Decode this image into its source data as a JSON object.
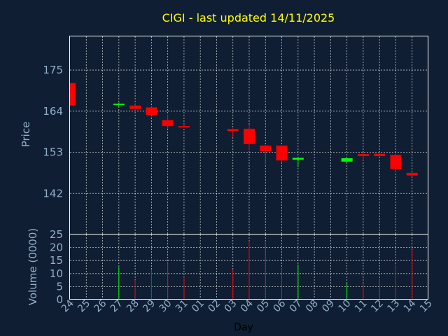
{
  "chart_data": {
    "type": "candlestick",
    "title": "CIGI - last updated 14/11/2025",
    "xlabel": "Day",
    "price_ylabel": "Price",
    "volume_ylabel": "Volume (0000)",
    "x_ticks": [
      "24",
      "25",
      "26",
      "27",
      "28",
      "29",
      "30",
      "31",
      "01",
      "02",
      "03",
      "04",
      "05",
      "06",
      "07",
      "08",
      "09",
      "10",
      "11",
      "12",
      "13",
      "14",
      "15"
    ],
    "price_ylim": [
      131,
      184
    ],
    "price_yticks": [
      142,
      153,
      164,
      175
    ],
    "volume_ylim": [
      0,
      25
    ],
    "volume_yticks": [
      0,
      5,
      10,
      15,
      20,
      25
    ],
    "colors": {
      "up": "#00ff00",
      "down": "#ff0000"
    },
    "candles": [
      {
        "day": "24",
        "open": 171.5,
        "high": 171.5,
        "low": 165.5,
        "close": 165.5,
        "volume": 0
      },
      {
        "day": "27",
        "open": 165.7,
        "high": 166.3,
        "low": 165.2,
        "close": 166.0,
        "volume": 12.5
      },
      {
        "day": "28",
        "open": 165.5,
        "high": 165.8,
        "low": 164.2,
        "close": 164.6,
        "volume": 7.5
      },
      {
        "day": "29",
        "open": 165.0,
        "high": 165.2,
        "low": 162.5,
        "close": 163.0,
        "volume": 11.5
      },
      {
        "day": "30",
        "open": 161.6,
        "high": 163.0,
        "low": 159.3,
        "close": 160.0,
        "volume": 14.0
      },
      {
        "day": "31",
        "open": 160.0,
        "high": 160.5,
        "low": 159.6,
        "close": 159.8,
        "volume": 8.5
      },
      {
        "day": "03",
        "open": 159.2,
        "high": 159.4,
        "low": 157.0,
        "close": 158.7,
        "volume": 11.5
      },
      {
        "day": "04",
        "open": 159.3,
        "high": 160.3,
        "low": 153.6,
        "close": 155.2,
        "volume": 22.5
      },
      {
        "day": "05",
        "open": 154.8,
        "high": 155.0,
        "low": 149.8,
        "close": 153.3,
        "volume": 22.5
      },
      {
        "day": "06",
        "open": 154.8,
        "high": 154.8,
        "low": 150.4,
        "close": 150.8,
        "volume": 12.0
      },
      {
        "day": "07",
        "open": 151.0,
        "high": 151.8,
        "low": 149.0,
        "close": 151.5,
        "volume": 13.5
      },
      {
        "day": "10",
        "open": 150.5,
        "high": 151.5,
        "low": 150.3,
        "close": 151.4,
        "volume": 6.5
      },
      {
        "day": "11",
        "open": 152.5,
        "high": 153.0,
        "low": 150.8,
        "close": 152.0,
        "volume": 6.0
      },
      {
        "day": "12",
        "open": 152.6,
        "high": 153.1,
        "low": 151.8,
        "close": 152.0,
        "volume": 8.0
      },
      {
        "day": "13",
        "open": 152.3,
        "high": 152.5,
        "low": 147.8,
        "close": 148.5,
        "volume": 13.5
      },
      {
        "day": "14",
        "open": 147.5,
        "high": 147.6,
        "low": 146.5,
        "close": 146.8,
        "volume": 19.0
      }
    ]
  }
}
